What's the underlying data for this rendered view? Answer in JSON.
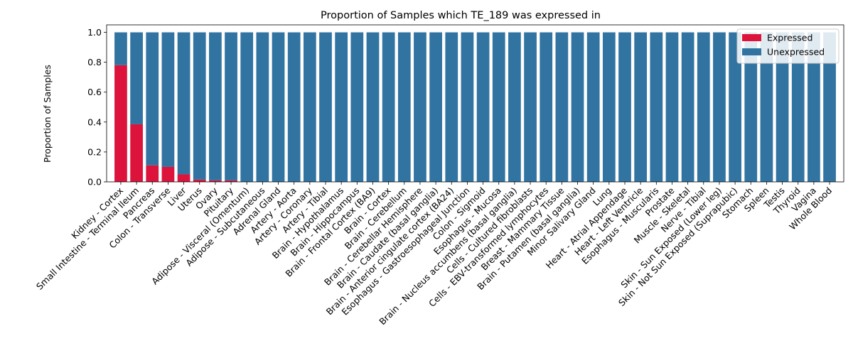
{
  "chart_data": {
    "type": "bar",
    "stacked": true,
    "title": "Proportion of Samples which TE_189 was expressed in",
    "xlabel": "",
    "ylabel": "Proportion of Samples",
    "ylim": [
      0,
      1.05
    ],
    "yticks": [
      0.0,
      0.2,
      0.4,
      0.6,
      0.8,
      1.0
    ],
    "ytick_labels": [
      "0.0",
      "0.2",
      "0.4",
      "0.6",
      "0.8",
      "1.0"
    ],
    "legend_position": "top-right",
    "grid": false,
    "categories": [
      "Kidney - Cortex",
      "Small Intestine - Terminal Ileum",
      "Pancreas",
      "Colon - Transverse",
      "Liver",
      "Uterus",
      "Ovary",
      "Pituitary",
      "Adipose - Visceral (Omentum)",
      "Adipose - Subcutaneous",
      "Adrenal Gland",
      "Artery - Aorta",
      "Artery - Coronary",
      "Artery - Tibial",
      "Brain - Hypothalamus",
      "Brain - Hippocampus",
      "Brain - Frontal Cortex (BA9)",
      "Brain - Cortex",
      "Brain - Cerebellum",
      "Brain - Cerebellar Hemisphere",
      "Brain - Caudate (basal ganglia)",
      "Brain - Anterior cingulate cortex (BA24)",
      "Esophagus - Gastroesophageal Junction",
      "Colon - Sigmoid",
      "Esophagus - Mucosa",
      "Brain - Nucleus accumbens (basal ganglia)",
      "Cells - Cultured fibroblasts",
      "Cells - EBV-transformed lymphocytes",
      "Breast - Mammary Tissue",
      "Brain - Putamen (basal ganglia)",
      "Minor Salivary Gland",
      "Lung",
      "Heart - Atrial Appendage",
      "Heart - Left Ventricle",
      "Esophagus - Muscularis",
      "Prostate",
      "Muscle - Skeletal",
      "Nerve - Tibial",
      "Skin - Sun Exposed (Lower leg)",
      "Skin - Not Sun Exposed (Suprapubic)",
      "Stomach",
      "Spleen",
      "Testis",
      "Thyroid",
      "Vagina",
      "Whole Blood"
    ],
    "series": [
      {
        "name": "Expressed",
        "color": "#dc143c",
        "values": [
          0.78,
          0.385,
          0.11,
          0.1,
          0.05,
          0.015,
          0.01,
          0.01,
          0.0,
          0.0,
          0.0,
          0.0,
          0.0,
          0.0,
          0.0,
          0.0,
          0.0,
          0.0,
          0.0,
          0.0,
          0.0,
          0.0,
          0.0,
          0.0,
          0.0,
          0.0,
          0.0,
          0.0,
          0.0,
          0.0,
          0.0,
          0.0,
          0.0,
          0.0,
          0.0,
          0.0,
          0.0,
          0.0,
          0.0,
          0.0,
          0.0,
          0.0,
          0.0,
          0.0,
          0.0,
          0.0
        ]
      },
      {
        "name": "Unexpressed",
        "color": "#3274a1",
        "values": [
          0.22,
          0.615,
          0.89,
          0.9,
          0.95,
          0.985,
          0.99,
          0.99,
          1.0,
          1.0,
          1.0,
          1.0,
          1.0,
          1.0,
          1.0,
          1.0,
          1.0,
          1.0,
          1.0,
          1.0,
          1.0,
          1.0,
          1.0,
          1.0,
          1.0,
          1.0,
          1.0,
          1.0,
          1.0,
          1.0,
          1.0,
          1.0,
          1.0,
          1.0,
          1.0,
          1.0,
          1.0,
          1.0,
          1.0,
          1.0,
          1.0,
          1.0,
          1.0,
          1.0,
          1.0,
          1.0
        ]
      }
    ]
  }
}
